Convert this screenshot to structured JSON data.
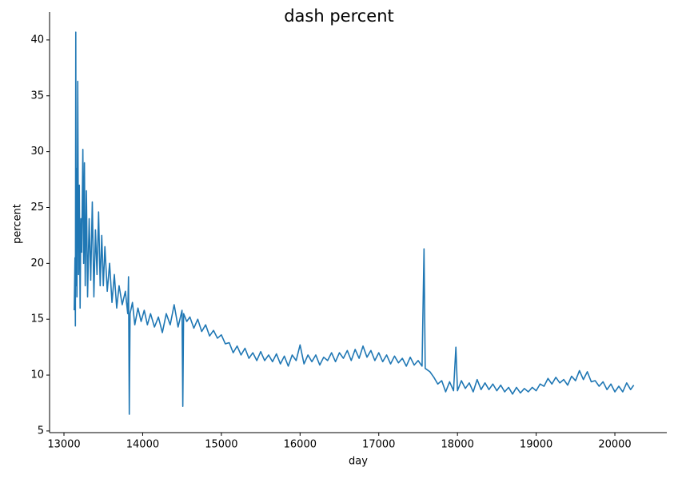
{
  "chart_data": {
    "type": "line",
    "title": "dash percent",
    "x_label": "day",
    "y_label": "percent",
    "x": [
      13130,
      13140,
      13145,
      13150,
      13155,
      13160,
      13165,
      13175,
      13185,
      13195,
      13205,
      13215,
      13225,
      13240,
      13250,
      13260,
      13270,
      13285,
      13300,
      13320,
      13340,
      13360,
      13380,
      13400,
      13420,
      13440,
      13460,
      13480,
      13500,
      13520,
      13550,
      13580,
      13610,
      13640,
      13670,
      13700,
      13740,
      13780,
      13810,
      13820,
      13830,
      13840,
      13870,
      13900,
      13940,
      13980,
      14020,
      14060,
      14100,
      14150,
      14200,
      14250,
      14300,
      14350,
      14400,
      14450,
      14500,
      14510,
      14520,
      14560,
      14600,
      14650,
      14700,
      14750,
      14800,
      14850,
      14900,
      14950,
      15000,
      15050,
      15100,
      15150,
      15200,
      15250,
      15300,
      15350,
      15400,
      15450,
      15500,
      15550,
      15600,
      15650,
      15700,
      15750,
      15800,
      15850,
      15900,
      15950,
      16000,
      16050,
      16100,
      16150,
      16200,
      16250,
      16300,
      16350,
      16400,
      16450,
      16500,
      16550,
      16600,
      16650,
      16700,
      16750,
      16800,
      16850,
      16900,
      16950,
      17000,
      17050,
      17100,
      17150,
      17200,
      17250,
      17300,
      17350,
      17400,
      17450,
      17500,
      17550,
      17575,
      17590,
      17650,
      17700,
      17750,
      17800,
      17850,
      17900,
      17950,
      17980,
      18000,
      18050,
      18100,
      18150,
      18200,
      18250,
      18300,
      18350,
      18400,
      18450,
      18500,
      18550,
      18600,
      18650,
      18700,
      18750,
      18800,
      18850,
      18900,
      18950,
      19000,
      19050,
      19100,
      19150,
      19200,
      19250,
      19300,
      19350,
      19400,
      19450,
      19500,
      19550,
      19600,
      19650,
      19700,
      19750,
      19800,
      19850,
      19900,
      19950,
      20000,
      20050,
      20100,
      20150,
      20200,
      20240
    ],
    "series": [
      {
        "name": "percent",
        "color": "#1f77b4",
        "values": [
          15.8,
          20.5,
          14.4,
          40.7,
          18,
          28.5,
          17,
          36.3,
          19,
          27,
          16,
          24,
          21,
          30.2,
          20,
          29,
          18,
          26.5,
          17,
          24,
          18.5,
          25.5,
          17,
          23,
          19,
          24.6,
          18,
          22.5,
          18,
          21.5,
          17.5,
          20,
          16.5,
          19,
          16,
          18,
          16.3,
          17.5,
          15.5,
          18.8,
          6.5,
          15.5,
          16.5,
          14.5,
          16,
          14.8,
          15.8,
          14.5,
          15.5,
          14.3,
          15.2,
          13.8,
          15.5,
          14.5,
          16.3,
          14.3,
          15.8,
          7.2,
          15.5,
          14.8,
          15.2,
          14.2,
          15,
          13.9,
          14.5,
          13.5,
          14,
          13.3,
          13.6,
          12.8,
          12.9,
          12,
          12.6,
          11.8,
          12.4,
          11.5,
          12,
          11.3,
          12.1,
          11.3,
          11.8,
          11.2,
          11.9,
          11,
          11.7,
          10.8,
          11.8,
          11.3,
          12.7,
          11,
          11.8,
          11.2,
          11.8,
          10.9,
          11.6,
          11.3,
          12,
          11.2,
          12,
          11.5,
          12.2,
          11.3,
          12.3,
          11.5,
          12.6,
          11.6,
          12.2,
          11.3,
          12,
          11.2,
          11.8,
          11,
          11.7,
          11.1,
          11.5,
          10.8,
          11.6,
          10.9,
          11.3,
          10.8,
          21.3,
          10.6,
          10.3,
          9.8,
          9.2,
          9.5,
          8.5,
          9.4,
          8.6,
          12.5,
          8.6,
          9.5,
          8.8,
          9.3,
          8.5,
          9.6,
          8.7,
          9.3,
          8.7,
          9.2,
          8.6,
          9.1,
          8.5,
          8.9,
          8.3,
          8.9,
          8.4,
          8.8,
          8.5,
          8.9,
          8.6,
          9.2,
          9,
          9.7,
          9.2,
          9.8,
          9.3,
          9.6,
          9.1,
          9.9,
          9.5,
          10.4,
          9.6,
          10.3,
          9.4,
          9.5,
          9,
          9.4,
          8.7,
          9.2,
          8.5,
          9,
          8.5,
          9.3,
          8.7,
          9.1
        ]
      }
    ],
    "xlim": [
      12817,
      20660
    ],
    "ylim": [
      4.85,
      42.5
    ],
    "xticks": [
      13000,
      14000,
      15000,
      16000,
      17000,
      18000,
      19000,
      20000
    ],
    "yticks": [
      5,
      10,
      15,
      20,
      25,
      30,
      35,
      40
    ]
  }
}
